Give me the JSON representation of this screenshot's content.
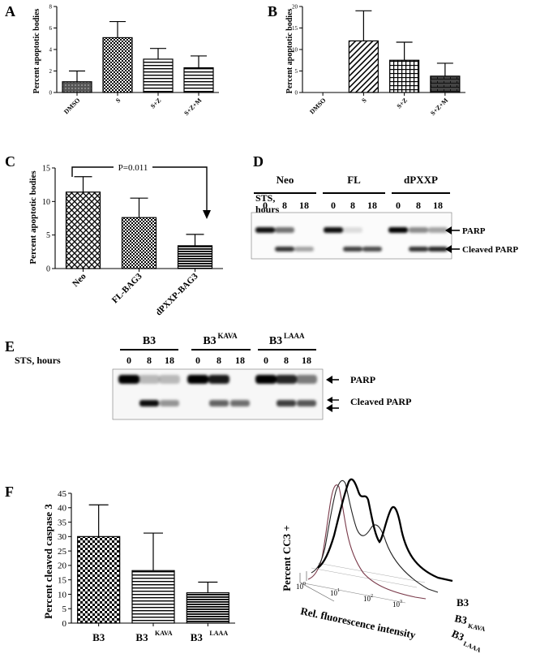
{
  "panels": {
    "A": {
      "letter": "A",
      "chart_data": {
        "type": "bar",
        "ylabel": "Percent apoptotic bodies",
        "categories": [
          "DMSO",
          "S",
          "S+Z",
          "S+Z+M"
        ],
        "values": [
          1.0,
          5.1,
          3.1,
          2.3
        ],
        "errors": [
          1.0,
          1.5,
          1.0,
          1.1
        ],
        "ylim": [
          0,
          8
        ],
        "yticks": [
          "0",
          "2",
          "4",
          "6",
          "8"
        ]
      }
    },
    "B": {
      "letter": "B",
      "chart_data": {
        "type": "bar",
        "ylabel": "Percent apoptotic bodies",
        "categories": [
          "DMSO",
          "S",
          "S+Z",
          "S+Z+M"
        ],
        "values": [
          0,
          12,
          7.5,
          3.8
        ],
        "errors": [
          0,
          7,
          4.2,
          3.0
        ],
        "ylim": [
          0,
          20
        ],
        "yticks": [
          "0",
          "5",
          "10",
          "15",
          "20"
        ]
      }
    },
    "C": {
      "letter": "C",
      "pvalue": "P=0.011",
      "chart_data": {
        "type": "bar",
        "ylabel": "Percent apoptotic bodies",
        "categories": [
          "Neo",
          "FL-BAG3",
          "dPXXP-BAG3"
        ],
        "values": [
          11.4,
          7.6,
          3.4
        ],
        "errors": [
          2.3,
          2.9,
          1.7
        ],
        "ylim": [
          0,
          15
        ],
        "yticks": [
          "0",
          "5",
          "10",
          "15"
        ]
      }
    },
    "D": {
      "letter": "D",
      "groups": [
        "Neo",
        "FL",
        "dPXXP"
      ],
      "sts_label_1": "STS,",
      "sts_label_2": "hours",
      "lanes": [
        "0",
        "8",
        "18",
        "0",
        "8",
        "18",
        "0",
        "8",
        "18"
      ],
      "band_parp": "PARP",
      "band_cleaved": "Cleaved PARP"
    },
    "E": {
      "letter": "E",
      "groups": [
        "B3",
        "B3",
        "B3"
      ],
      "group_sup": [
        "",
        "KAVA",
        "LAAA"
      ],
      "sts_label": "STS, hours",
      "lanes": [
        "0",
        "8",
        "18",
        "0",
        "8",
        "18",
        "0",
        "8",
        "18"
      ],
      "band_parp": "PARP",
      "band_cleaved": "Cleaved PARP"
    },
    "F": {
      "letter": "F",
      "chart_data": {
        "type": "bar",
        "ylabel": "Percent cleaved caspase 3",
        "categories": [
          "B3",
          "B3",
          "B3"
        ],
        "category_sup": [
          "",
          "KAVA",
          "LAAA"
        ],
        "values": [
          30,
          18.2,
          10.5
        ],
        "errors": [
          11,
          13,
          3.7
        ],
        "ylim": [
          0,
          45
        ],
        "yticks": [
          "0",
          "5",
          "10",
          "15",
          "20",
          "25",
          "30",
          "35",
          "40",
          "45"
        ]
      },
      "histogram": {
        "ylabel": "Percent CC3 +",
        "xlabel": "Rel. fluorescence intensity",
        "xticks": [
          "10",
          "10",
          "10",
          "10"
        ],
        "xtick_exp": [
          "0",
          "1",
          "2",
          "3"
        ],
        "series": [
          "B3",
          "B3",
          "B3"
        ],
        "series_sup": [
          "",
          "KAVA",
          "LAAA"
        ]
      }
    }
  }
}
